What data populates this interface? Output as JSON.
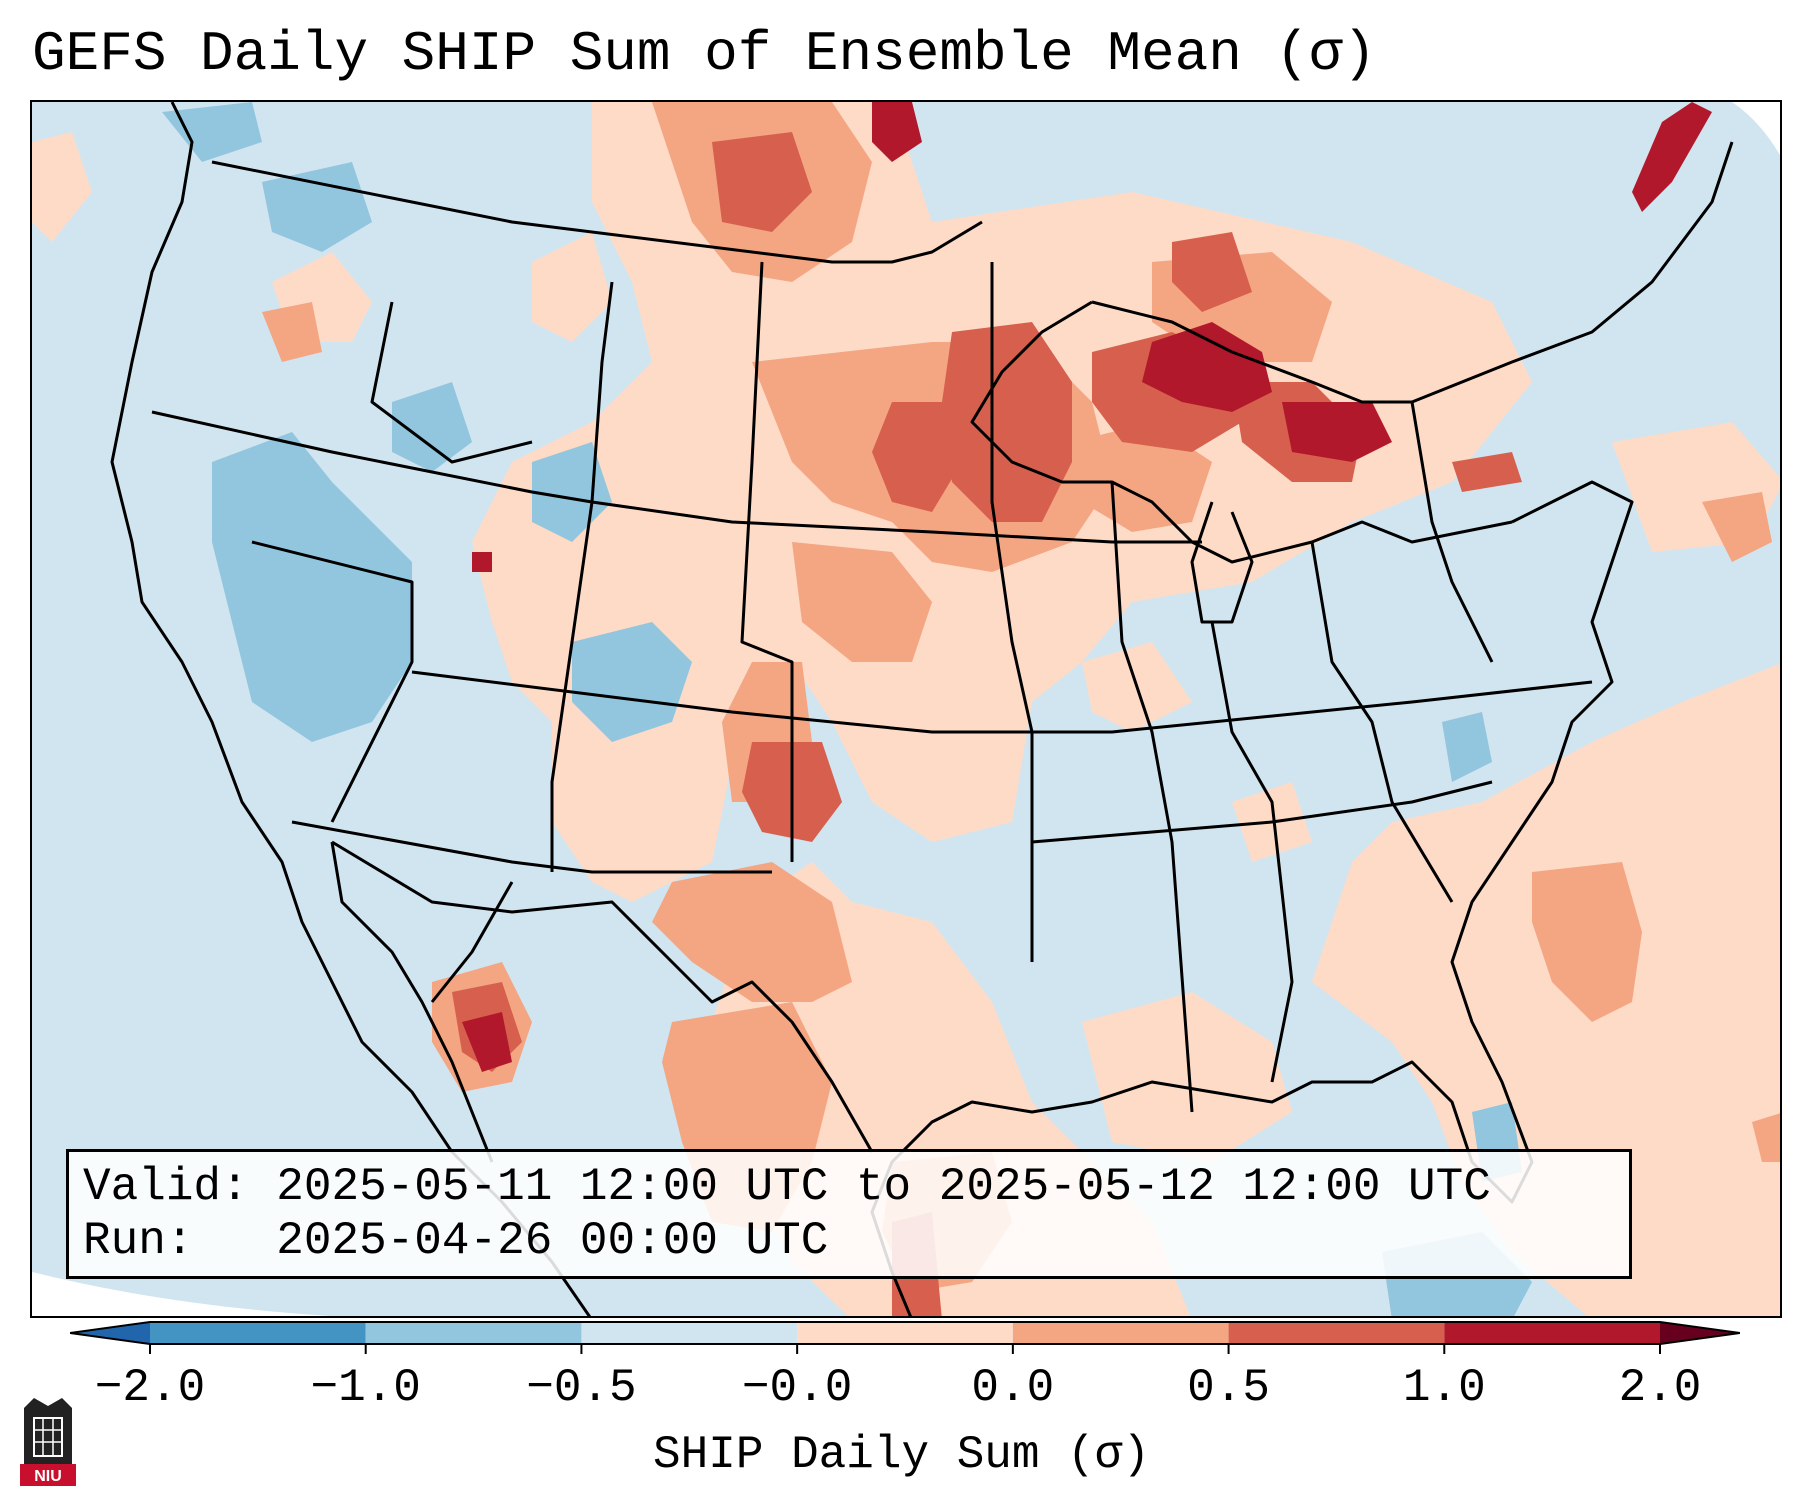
{
  "title": "GEFS Daily SHIP Sum of Ensemble Mean (σ)",
  "info": {
    "valid_label": "Valid:",
    "valid_value": "2025-05-11 12:00 UTC to 2025-05-12 12:00 UTC",
    "run_label": "Run:",
    "run_value": "2025-04-26 00:00 UTC"
  },
  "colorbar": {
    "label": "SHIP Daily Sum (σ)",
    "ticks": [
      "−2.0",
      "−1.0",
      "−0.5",
      "−0.0",
      "0.0",
      "0.5",
      "1.0",
      "2.0"
    ],
    "colors": [
      "#4393c3",
      "#92c5de",
      "#d1e5f0",
      "#f7f7f7",
      "#fddbc7",
      "#f4a582",
      "#d6604d",
      "#b2182b"
    ]
  },
  "logo": {
    "text": "NIU"
  }
}
